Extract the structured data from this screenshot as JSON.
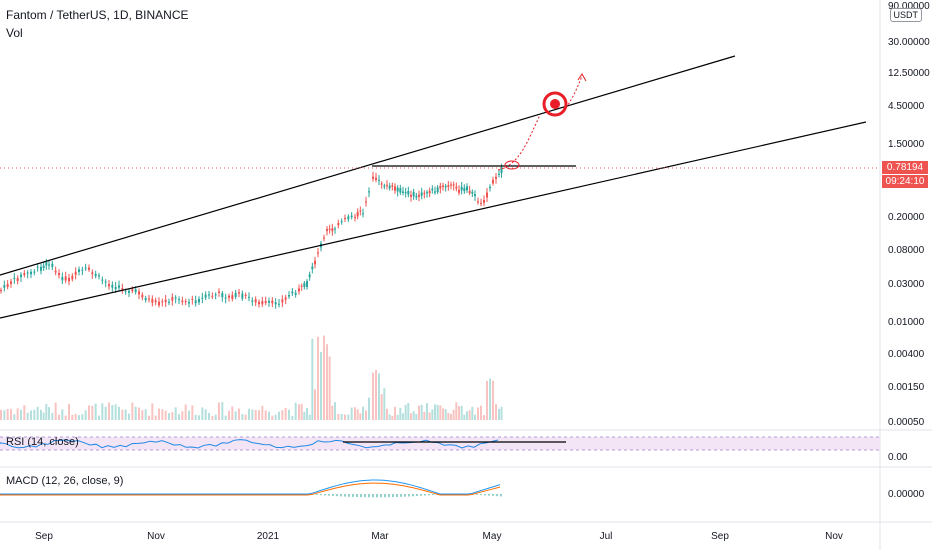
{
  "header": {
    "symbol": "Fantom / TetherUS, 1D, BINANCE",
    "volume_label": "Vol",
    "currency": "USDT"
  },
  "price_axis": {
    "ticks": [
      "90.00000",
      "30.00000",
      "12.50000",
      "4.50000",
      "1.50000",
      "0.20000",
      "0.08000",
      "0.03000",
      "0.01000",
      "0.00400",
      "0.00150",
      "0.00050"
    ],
    "last_price": "0.78194",
    "countdown": "09:24:10"
  },
  "time_axis": {
    "labels": [
      "Sep",
      "Nov",
      "2021",
      "Mar",
      "May",
      "Jul",
      "Sep",
      "Nov"
    ]
  },
  "rsi": {
    "label": "RSI (14, close)",
    "axis_value": "0.00"
  },
  "macd": {
    "label": "MACD (12, 26, close, 9)",
    "axis_value": "0.00000"
  },
  "colors": {
    "up": "#26a69a",
    "down": "#ef5350",
    "line": "#000000",
    "price_line": "#ef5350",
    "rsi_band": "#f3e5f5",
    "rsi_line": "#1e88e5",
    "macd_line": "#2196f3",
    "signal_line": "#ff6d00",
    "target": "#e91e26"
  },
  "chart_data": {
    "type": "candlestick",
    "title": "Fantom / TetherUS, 1D, BINANCE",
    "y_scale": "log",
    "x": [
      "2020-08",
      "2020-09",
      "2020-10",
      "2020-11",
      "2020-12",
      "2021-01",
      "2021-02",
      "2021-03",
      "2021-04",
      "2021-05"
    ],
    "close_approx": [
      0.02,
      0.045,
      0.025,
      0.015,
      0.016,
      0.04,
      0.3,
      0.45,
      0.4,
      0.78
    ],
    "last_close": 0.78194,
    "annotations": [
      "ascending channel",
      "resistance line",
      "projected target"
    ]
  }
}
